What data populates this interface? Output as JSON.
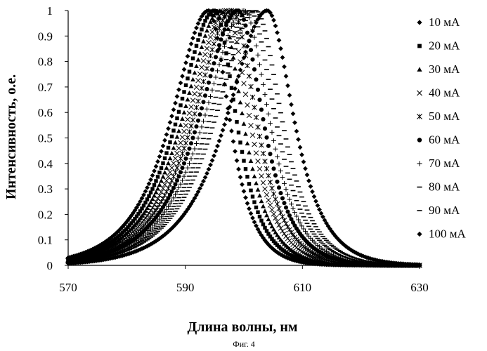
{
  "chart_data": {
    "type": "scatter",
    "title": "",
    "xlabel": "Длина волны, нм",
    "ylabel": "Интенсивность, о.е.",
    "caption": "Фиг. 4",
    "xlim": [
      570,
      630
    ],
    "ylim": [
      0,
      1
    ],
    "xticks": [
      "570",
      "590",
      "610",
      "630"
    ],
    "yticks": [
      "0",
      "0.1",
      "0.2",
      "0.3",
      "0.4",
      "0.5",
      "0.6",
      "0.7",
      "0.8",
      "0.9",
      "1"
    ],
    "grid": false,
    "legend_position": "right",
    "series": [
      {
        "name": "10 мА",
        "marker": "diamond",
        "peak_x": 594.0,
        "left_width": 9.0,
        "right_width": 5.0
      },
      {
        "name": "20 мА",
        "marker": "square",
        "peak_x": 595.0,
        "left_width": 9.0,
        "right_width": 5.2
      },
      {
        "name": "30 мА",
        "marker": "triangle",
        "peak_x": 596.0,
        "left_width": 9.1,
        "right_width": 5.4
      },
      {
        "name": "40 мА",
        "marker": "x",
        "peak_x": 597.0,
        "left_width": 9.2,
        "right_width": 5.6
      },
      {
        "name": "50 мА",
        "marker": "star",
        "peak_x": 598.0,
        "left_width": 9.3,
        "right_width": 5.8
      },
      {
        "name": "60 мА",
        "marker": "circle",
        "peak_x": 599.0,
        "left_width": 9.4,
        "right_width": 6.0
      },
      {
        "name": "70 мА",
        "marker": "plus",
        "peak_x": 600.0,
        "left_width": 9.5,
        "right_width": 6.1
      },
      {
        "name": "80 мА",
        "marker": "dash",
        "peak_x": 601.0,
        "left_width": 9.6,
        "right_width": 6.2
      },
      {
        "name": "90 мА",
        "marker": "dash",
        "peak_x": 602.0,
        "left_width": 9.7,
        "right_width": 6.3
      },
      {
        "name": "100 мА",
        "marker": "diamond",
        "peak_x": 604.0,
        "left_width": 9.8,
        "right_width": 6.4
      }
    ]
  }
}
